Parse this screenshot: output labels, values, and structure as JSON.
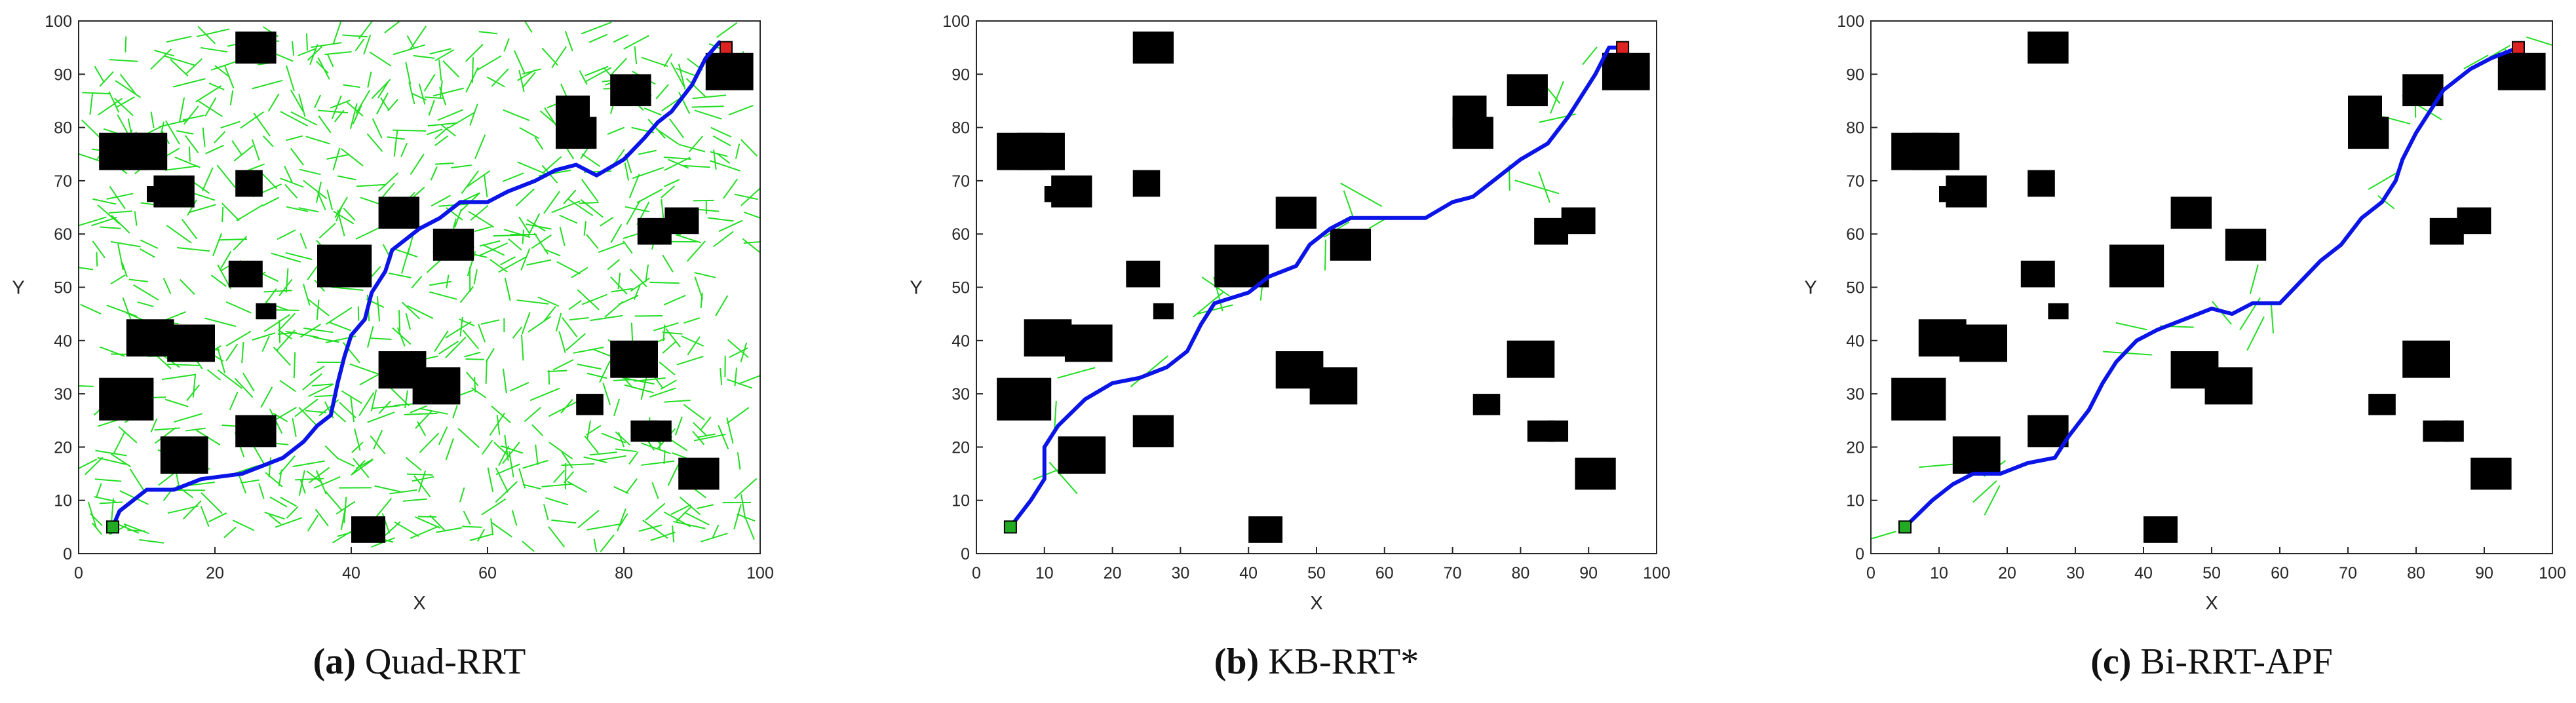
{
  "colors": {
    "obstacle": "#000000",
    "path": "#0a14e6",
    "tree": "#22dd22",
    "start": "#22aa22",
    "goal": "#dd2222",
    "axis": "#262626"
  },
  "obstacles": [
    [
      3,
      72,
      7,
      7
    ],
    [
      6,
      72,
      7,
      7
    ],
    [
      10,
      66,
      3,
      3
    ],
    [
      11,
      65,
      6,
      6
    ],
    [
      22,
      50,
      5,
      5
    ],
    [
      26,
      44,
      3,
      3
    ],
    [
      23,
      67,
      4,
      5
    ],
    [
      23,
      92,
      6,
      6
    ],
    [
      7,
      37,
      7,
      7
    ],
    [
      13,
      36,
      7,
      7
    ],
    [
      3,
      25,
      8,
      8
    ],
    [
      12,
      15,
      7,
      7
    ],
    [
      23,
      20,
      6,
      6
    ],
    [
      35,
      50,
      8,
      8
    ],
    [
      44,
      61,
      6,
      6
    ],
    [
      52,
      55,
      6,
      6
    ],
    [
      44,
      31,
      7,
      7
    ],
    [
      49,
      28,
      7,
      7
    ],
    [
      40,
      2,
      5,
      5
    ],
    [
      70,
      80,
      5,
      6
    ],
    [
      70,
      76,
      6,
      6
    ],
    [
      78,
      84,
      6,
      6
    ],
    [
      92,
      87,
      7,
      7
    ],
    [
      82,
      58,
      5,
      5
    ],
    [
      86,
      60,
      5,
      5
    ],
    [
      78,
      33,
      7,
      7
    ],
    [
      73,
      26,
      4,
      4
    ],
    [
      81,
      21,
      4,
      4
    ],
    [
      84,
      21,
      3,
      4
    ],
    [
      88,
      12,
      6,
      6
    ]
  ],
  "charts": [
    {
      "caption_label": "(a)",
      "caption_title": " Quad-RRT",
      "chart_data": {
        "type": "scatter",
        "title": "",
        "xlabel": "X",
        "ylabel": "Y",
        "xlim": [
          0,
          100
        ],
        "ylim": [
          0,
          100
        ],
        "xticks": [
          0,
          20,
          40,
          60,
          80,
          100
        ],
        "yticks": [
          0,
          10,
          20,
          30,
          40,
          50,
          60,
          70,
          80,
          90,
          100
        ],
        "start": [
          5,
          5
        ],
        "goal": [
          95,
          95
        ],
        "tree_density": "dense",
        "path": [
          [
            5,
            5
          ],
          [
            6,
            8
          ],
          [
            10,
            12
          ],
          [
            14,
            12
          ],
          [
            18,
            14
          ],
          [
            24,
            15
          ],
          [
            30,
            18
          ],
          [
            33,
            21
          ],
          [
            35,
            24
          ],
          [
            37,
            26
          ],
          [
            38,
            32
          ],
          [
            39,
            37
          ],
          [
            40,
            41
          ],
          [
            42,
            44
          ],
          [
            43,
            49
          ],
          [
            45,
            53
          ],
          [
            46,
            57
          ],
          [
            50,
            61
          ],
          [
            53,
            63
          ],
          [
            56,
            66
          ],
          [
            60,
            66
          ],
          [
            63,
            68
          ],
          [
            67,
            70
          ],
          [
            70,
            72
          ],
          [
            73,
            73
          ],
          [
            76,
            71
          ],
          [
            80,
            74
          ],
          [
            83,
            78
          ],
          [
            85,
            81
          ],
          [
            87,
            83
          ],
          [
            90,
            88
          ],
          [
            92,
            93
          ],
          [
            94,
            96
          ],
          [
            95,
            95
          ]
        ]
      }
    },
    {
      "caption_label": "(b)",
      "caption_title": " KB-RRT*",
      "chart_data": {
        "type": "scatter",
        "title": "",
        "xlabel": "X",
        "ylabel": "Y",
        "xlim": [
          0,
          100
        ],
        "ylim": [
          0,
          100
        ],
        "xticks": [
          0,
          10,
          20,
          30,
          40,
          50,
          60,
          70,
          80,
          90,
          100
        ],
        "yticks": [
          0,
          10,
          20,
          30,
          40,
          50,
          60,
          70,
          80,
          90,
          100
        ],
        "start": [
          5,
          5
        ],
        "goal": [
          95,
          95
        ],
        "tree_density": "sparse",
        "path": [
          [
            5,
            5
          ],
          [
            8,
            10
          ],
          [
            10,
            14
          ],
          [
            10,
            20
          ],
          [
            12,
            24
          ],
          [
            16,
            29
          ],
          [
            20,
            32
          ],
          [
            24,
            33
          ],
          [
            28,
            35
          ],
          [
            31,
            38
          ],
          [
            33,
            43
          ],
          [
            35,
            47
          ],
          [
            40,
            49
          ],
          [
            43,
            52
          ],
          [
            47,
            54
          ],
          [
            49,
            58
          ],
          [
            52,
            61
          ],
          [
            55,
            63
          ],
          [
            58,
            63
          ],
          [
            62,
            63
          ],
          [
            66,
            63
          ],
          [
            70,
            66
          ],
          [
            73,
            67
          ],
          [
            77,
            71
          ],
          [
            80,
            74
          ],
          [
            84,
            77
          ],
          [
            87,
            82
          ],
          [
            89,
            86
          ],
          [
            91,
            90
          ],
          [
            93,
            95
          ],
          [
            95,
            95
          ]
        ]
      }
    },
    {
      "caption_label": "(c)",
      "caption_title": " Bi-RRT-APF",
      "chart_data": {
        "type": "scatter",
        "title": "",
        "xlabel": "X",
        "ylabel": "Y",
        "xlim": [
          0,
          100
        ],
        "ylim": [
          0,
          100
        ],
        "xticks": [
          0,
          10,
          20,
          30,
          40,
          50,
          60,
          70,
          80,
          90,
          100
        ],
        "yticks": [
          0,
          10,
          20,
          30,
          40,
          50,
          60,
          70,
          80,
          90,
          100
        ],
        "start": [
          5,
          5
        ],
        "goal": [
          95,
          95
        ],
        "tree_density": "sparse",
        "path": [
          [
            5,
            5
          ],
          [
            9,
            10
          ],
          [
            12,
            13
          ],
          [
            15,
            15
          ],
          [
            19,
            15
          ],
          [
            23,
            17
          ],
          [
            27,
            18
          ],
          [
            29,
            22
          ],
          [
            32,
            27
          ],
          [
            34,
            32
          ],
          [
            36,
            36
          ],
          [
            39,
            40
          ],
          [
            42,
            42
          ],
          [
            46,
            44
          ],
          [
            50,
            46
          ],
          [
            53,
            45
          ],
          [
            56,
            47
          ],
          [
            60,
            47
          ],
          [
            63,
            51
          ],
          [
            66,
            55
          ],
          [
            69,
            58
          ],
          [
            72,
            63
          ],
          [
            75,
            66
          ],
          [
            77,
            70
          ],
          [
            78,
            74
          ],
          [
            80,
            79
          ],
          [
            82,
            83
          ],
          [
            84,
            87
          ],
          [
            88,
            91
          ],
          [
            91,
            93
          ],
          [
            95,
            95
          ]
        ]
      }
    }
  ]
}
